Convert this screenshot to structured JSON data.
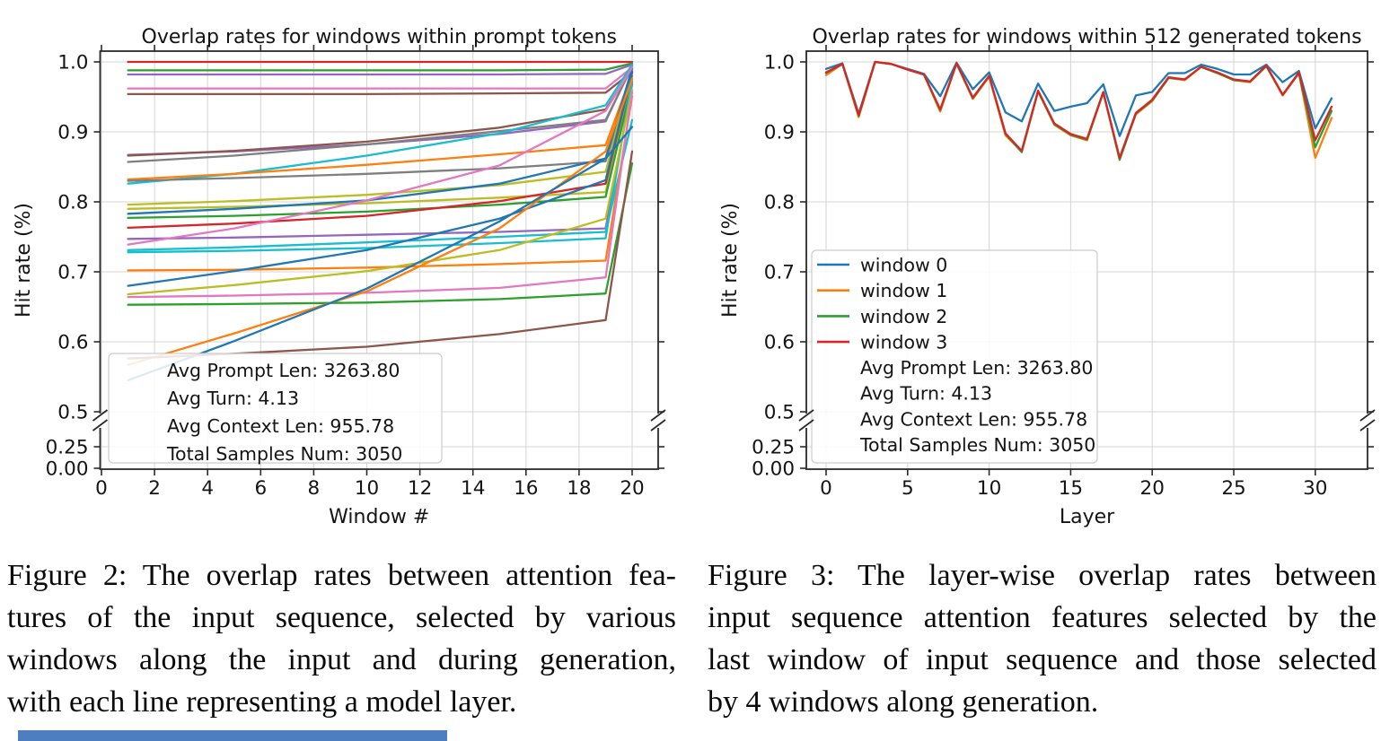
{
  "figure2": {
    "title": "Overlap rates for windows within prompt tokens",
    "xlabel": "Window #",
    "ylabel": "Hit rate (%)",
    "x_ticks": [
      "0",
      "2",
      "4",
      "6",
      "8",
      "10",
      "12",
      "14",
      "16",
      "18",
      "20"
    ],
    "y_ticks": [
      "1.0",
      "0.9",
      "0.8",
      "0.7",
      "0.6",
      "0.5",
      "0.25",
      "0.00"
    ],
    "annotation_lines": [
      "Avg Prompt Len: 3263.80",
      "Avg Turn: 4.13",
      "Avg Context Len: 955.78",
      "Total Samples Num: 3050"
    ],
    "caption_lines": [
      "Figure 2: The overlap rates between attention fea-",
      "tures of the input sequence, selected by various",
      "windows along the input and during generation,",
      "with each line representing a model layer."
    ]
  },
  "figure3": {
    "title": "Overlap rates for windows within 512 generated tokens",
    "xlabel": "Layer",
    "ylabel": "Hit rate (%)",
    "x_ticks": [
      "0",
      "5",
      "10",
      "15",
      "20",
      "25",
      "30"
    ],
    "y_ticks": [
      "1.0",
      "0.9",
      "0.8",
      "0.7",
      "0.6",
      "0.5",
      "0.25",
      "0.00"
    ],
    "legend": [
      "window 0",
      "window 1",
      "window 2",
      "window 3"
    ],
    "annotation_lines": [
      "Avg Prompt Len: 3263.80",
      "Avg Turn: 4.13",
      "Avg Context Len: 955.78",
      "Total Samples Num: 3050"
    ],
    "caption_lines": [
      "Figure 3: The layer-wise overlap rates between",
      "input sequence attention features selected by the",
      "last window of input sequence and those selected",
      "by 4 windows along generation."
    ]
  },
  "chart_data": [
    {
      "type": "line",
      "title": "Overlap rates for windows within prompt tokens",
      "xlabel": "Window #",
      "ylabel": "Hit rate (%)",
      "x_range": [
        0,
        21
      ],
      "y_axis": {
        "broken": true,
        "upper": [
          0.5,
          1.0
        ],
        "lower_ticks": [
          0.25,
          0.0
        ]
      },
      "grid": true,
      "note": "each line is one model layer; values given at control windows",
      "x_control": [
        1,
        5,
        10,
        15,
        19,
        20
      ],
      "series": [
        {
          "color": "#d62728",
          "values": [
            1.0,
            1.0,
            1.0,
            1.0,
            1.0,
            1.0
          ]
        },
        {
          "color": "#2ca02c",
          "values": [
            0.988,
            0.988,
            0.988,
            0.988,
            0.989,
            0.998
          ]
        },
        {
          "color": "#9467bd",
          "values": [
            0.982,
            0.982,
            0.982,
            0.982,
            0.983,
            0.996
          ]
        },
        {
          "color": "#e377c2",
          "values": [
            0.962,
            0.962,
            0.962,
            0.962,
            0.962,
            0.992
          ]
        },
        {
          "color": "#8c564b",
          "values": [
            0.954,
            0.954,
            0.954,
            0.955,
            0.956,
            0.986
          ]
        },
        {
          "color": "#9467bd",
          "values": [
            0.867,
            0.872,
            0.882,
            0.897,
            0.915,
            0.995
          ]
        },
        {
          "color": "#8c564b",
          "values": [
            0.866,
            0.873,
            0.886,
            0.906,
            0.932,
            0.99
          ]
        },
        {
          "color": "#7f7f7f",
          "values": [
            0.857,
            0.866,
            0.882,
            0.901,
            0.917,
            0.993
          ]
        },
        {
          "color": "#17becf",
          "values": [
            0.826,
            0.84,
            0.866,
            0.898,
            0.938,
            0.996
          ]
        },
        {
          "color": "#ff7f0e",
          "values": [
            0.832,
            0.84,
            0.853,
            0.868,
            0.881,
            0.984
          ]
        },
        {
          "color": "#7f7f7f",
          "values": [
            0.83,
            0.834,
            0.84,
            0.848,
            0.858,
            0.98
          ]
        },
        {
          "color": "#bcbd22",
          "values": [
            0.796,
            0.801,
            0.81,
            0.824,
            0.843,
            0.988
          ]
        },
        {
          "color": "#bcbd22",
          "values": [
            0.79,
            0.793,
            0.798,
            0.806,
            0.814,
            0.974
          ]
        },
        {
          "color": "#1f77b4",
          "values": [
            0.783,
            0.79,
            0.802,
            0.826,
            0.862,
            0.991
          ]
        },
        {
          "color": "#2ca02c",
          "values": [
            0.777,
            0.78,
            0.786,
            0.796,
            0.807,
            0.971
          ]
        },
        {
          "color": "#d62728",
          "values": [
            0.763,
            0.769,
            0.78,
            0.801,
            0.826,
            0.985
          ]
        },
        {
          "color": "#9467bd",
          "values": [
            0.747,
            0.749,
            0.753,
            0.757,
            0.762,
            0.968
          ]
        },
        {
          "color": "#e377c2",
          "values": [
            0.739,
            0.762,
            0.802,
            0.852,
            0.93,
            0.992
          ]
        },
        {
          "color": "#17becf",
          "values": [
            0.731,
            0.735,
            0.742,
            0.75,
            0.757,
            0.917
          ]
        },
        {
          "color": "#17becf",
          "values": [
            0.728,
            0.73,
            0.734,
            0.741,
            0.748,
            0.975
          ]
        },
        {
          "color": "#ff7f0e",
          "values": [
            0.702,
            0.703,
            0.706,
            0.711,
            0.716,
            0.951
          ]
        },
        {
          "color": "#1f77b4",
          "values": [
            0.68,
            0.701,
            0.731,
            0.776,
            0.831,
            0.986
          ]
        },
        {
          "color": "#bcbd22",
          "values": [
            0.668,
            0.681,
            0.701,
            0.731,
            0.776,
            0.96
          ]
        },
        {
          "color": "#e377c2",
          "values": [
            0.664,
            0.666,
            0.67,
            0.677,
            0.692,
            0.957
          ]
        },
        {
          "color": "#2ca02c",
          "values": [
            0.653,
            0.654,
            0.656,
            0.661,
            0.669,
            0.855
          ]
        },
        {
          "color": "#ff7f0e",
          "values": [
            0.567,
            0.612,
            0.672,
            0.762,
            0.872,
            0.976
          ]
        },
        {
          "color": "#1f77b4",
          "values": [
            0.545,
            0.601,
            0.676,
            0.772,
            0.862,
            0.907
          ]
        },
        {
          "color": "#8c564b",
          "values": [
            0.576,
            0.583,
            0.593,
            0.611,
            0.631,
            0.872
          ]
        }
      ]
    },
    {
      "type": "line",
      "title": "Overlap rates for windows within 512 generated tokens",
      "xlabel": "Layer",
      "ylabel": "Hit rate (%)",
      "x_range": [
        0,
        31
      ],
      "y_axis": {
        "broken": true,
        "upper": [
          0.5,
          1.0
        ],
        "lower_ticks": [
          0.25,
          0.0
        ]
      },
      "grid": true,
      "legend_position": "center left",
      "x": [
        0,
        1,
        2,
        3,
        4,
        5,
        6,
        7,
        8,
        9,
        10,
        11,
        12,
        13,
        14,
        15,
        16,
        17,
        18,
        19,
        20,
        21,
        22,
        23,
        24,
        25,
        26,
        27,
        28,
        29,
        30,
        31
      ],
      "series": [
        {
          "name": "window 0",
          "color": "#1f77b4",
          "values": [
            0.99,
            0.998,
            0.926,
            1.0,
            0.997,
            0.99,
            0.983,
            0.951,
            0.999,
            0.961,
            0.985,
            0.928,
            0.915,
            0.969,
            0.93,
            0.936,
            0.941,
            0.968,
            0.894,
            0.952,
            0.957,
            0.984,
            0.984,
            0.996,
            0.99,
            0.982,
            0.982,
            0.996,
            0.971,
            0.987,
            0.905,
            0.948
          ]
        },
        {
          "name": "window 1",
          "color": "#ff7f0e",
          "values": [
            0.981,
            0.997,
            0.921,
            1.0,
            0.997,
            0.989,
            0.982,
            0.929,
            0.998,
            0.947,
            0.979,
            0.895,
            0.872,
            0.958,
            0.91,
            0.895,
            0.888,
            0.956,
            0.862,
            0.925,
            0.944,
            0.977,
            0.974,
            0.993,
            0.984,
            0.974,
            0.971,
            0.994,
            0.952,
            0.984,
            0.863,
            0.92
          ]
        },
        {
          "name": "window 2",
          "color": "#2ca02c",
          "values": [
            0.984,
            0.997,
            0.923,
            1.0,
            0.997,
            0.989,
            0.982,
            0.931,
            0.998,
            0.948,
            0.98,
            0.897,
            0.871,
            0.958,
            0.911,
            0.896,
            0.889,
            0.957,
            0.86,
            0.926,
            0.945,
            0.977,
            0.975,
            0.993,
            0.984,
            0.974,
            0.972,
            0.994,
            0.953,
            0.984,
            0.878,
            0.93
          ]
        },
        {
          "name": "window 3",
          "color": "#d62728",
          "values": [
            0.985,
            0.997,
            0.924,
            1.0,
            0.997,
            0.989,
            0.982,
            0.932,
            0.998,
            0.949,
            0.98,
            0.898,
            0.873,
            0.959,
            0.912,
            0.897,
            0.89,
            0.957,
            0.863,
            0.927,
            0.946,
            0.978,
            0.975,
            0.993,
            0.985,
            0.975,
            0.972,
            0.995,
            0.953,
            0.985,
            0.888,
            0.936
          ]
        }
      ]
    }
  ],
  "misc": {
    "bottom_strip_color": "#4d7ebf"
  }
}
